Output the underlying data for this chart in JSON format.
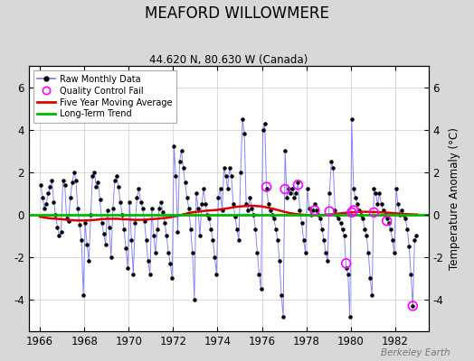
{
  "title": "MEAFORD WILLOWMERE",
  "subtitle": "44.620 N, 80.630 W (Canada)",
  "ylabel": "Temperature Anomaly (°C)",
  "watermark": "Berkeley Earth",
  "xlim": [
    1965.5,
    1983.5
  ],
  "ylim": [
    -5.5,
    7.0
  ],
  "yticks": [
    -4,
    -2,
    0,
    2,
    4,
    6
  ],
  "xticks": [
    1966,
    1968,
    1970,
    1972,
    1974,
    1976,
    1978,
    1980,
    1982
  ],
  "bg_color": "#d8d8d8",
  "plot_bg_color": "#ffffff",
  "raw_line_color": "#7777ff",
  "raw_dot_color": "#000000",
  "moving_avg_color": "#dd0000",
  "trend_color": "#00bb00",
  "qc_fail_color": "#ff00ff",
  "grid_color": "#cccccc",
  "raw_monthly": [
    [
      1966.042,
      1.4
    ],
    [
      1966.125,
      0.8
    ],
    [
      1966.208,
      0.3
    ],
    [
      1966.292,
      0.5
    ],
    [
      1966.375,
      1.0
    ],
    [
      1966.458,
      1.3
    ],
    [
      1966.542,
      1.6
    ],
    [
      1966.625,
      0.6
    ],
    [
      1966.708,
      0.0
    ],
    [
      1966.792,
      -0.6
    ],
    [
      1966.875,
      -1.0
    ],
    [
      1966.958,
      -0.8
    ],
    [
      1967.042,
      1.6
    ],
    [
      1967.125,
      1.4
    ],
    [
      1967.208,
      -0.2
    ],
    [
      1967.292,
      -0.3
    ],
    [
      1967.375,
      0.8
    ],
    [
      1967.458,
      1.5
    ],
    [
      1967.542,
      2.0
    ],
    [
      1967.625,
      1.6
    ],
    [
      1967.708,
      0.3
    ],
    [
      1967.792,
      -0.5
    ],
    [
      1967.875,
      -1.2
    ],
    [
      1967.958,
      -3.8
    ],
    [
      1968.042,
      -0.4
    ],
    [
      1968.125,
      -1.4
    ],
    [
      1968.208,
      -2.2
    ],
    [
      1968.292,
      0.0
    ],
    [
      1968.375,
      1.8
    ],
    [
      1968.458,
      2.0
    ],
    [
      1968.542,
      1.3
    ],
    [
      1968.625,
      1.5
    ],
    [
      1968.708,
      0.7
    ],
    [
      1968.792,
      -0.4
    ],
    [
      1968.875,
      -0.9
    ],
    [
      1968.958,
      -1.4
    ],
    [
      1969.042,
      0.2
    ],
    [
      1969.125,
      -0.6
    ],
    [
      1969.208,
      -2.0
    ],
    [
      1969.292,
      0.3
    ],
    [
      1969.375,
      1.6
    ],
    [
      1969.458,
      1.8
    ],
    [
      1969.542,
      1.3
    ],
    [
      1969.625,
      0.6
    ],
    [
      1969.708,
      0.0
    ],
    [
      1969.792,
      -0.7
    ],
    [
      1969.875,
      -1.6
    ],
    [
      1969.958,
      -2.5
    ],
    [
      1970.042,
      0.6
    ],
    [
      1970.125,
      -1.2
    ],
    [
      1970.208,
      -2.8
    ],
    [
      1970.292,
      -0.4
    ],
    [
      1970.375,
      0.8
    ],
    [
      1970.458,
      1.2
    ],
    [
      1970.542,
      0.6
    ],
    [
      1970.625,
      0.3
    ],
    [
      1970.708,
      -0.3
    ],
    [
      1970.792,
      -1.2
    ],
    [
      1970.875,
      -2.2
    ],
    [
      1970.958,
      -2.8
    ],
    [
      1971.042,
      0.3
    ],
    [
      1971.125,
      -1.0
    ],
    [
      1971.208,
      -1.8
    ],
    [
      1971.292,
      -0.7
    ],
    [
      1971.375,
      0.3
    ],
    [
      1971.458,
      0.6
    ],
    [
      1971.542,
      0.1
    ],
    [
      1971.625,
      -0.4
    ],
    [
      1971.708,
      -1.0
    ],
    [
      1971.792,
      -1.8
    ],
    [
      1971.875,
      -2.3
    ],
    [
      1971.958,
      -3.0
    ],
    [
      1972.042,
      3.2
    ],
    [
      1972.125,
      1.8
    ],
    [
      1972.208,
      -0.8
    ],
    [
      1972.292,
      2.5
    ],
    [
      1972.375,
      3.0
    ],
    [
      1972.458,
      2.2
    ],
    [
      1972.542,
      1.5
    ],
    [
      1972.625,
      0.8
    ],
    [
      1972.708,
      0.3
    ],
    [
      1972.792,
      -0.7
    ],
    [
      1972.875,
      -1.8
    ],
    [
      1972.958,
      -4.0
    ],
    [
      1973.042,
      1.0
    ],
    [
      1973.125,
      0.3
    ],
    [
      1973.208,
      -1.0
    ],
    [
      1973.292,
      0.5
    ],
    [
      1973.375,
      1.2
    ],
    [
      1973.458,
      0.5
    ],
    [
      1973.542,
      0.0
    ],
    [
      1973.625,
      -0.2
    ],
    [
      1973.708,
      -0.7
    ],
    [
      1973.792,
      -1.2
    ],
    [
      1973.875,
      -2.0
    ],
    [
      1973.958,
      -2.8
    ],
    [
      1974.042,
      0.8
    ],
    [
      1974.125,
      1.2
    ],
    [
      1974.208,
      0.2
    ],
    [
      1974.292,
      2.2
    ],
    [
      1974.375,
      1.8
    ],
    [
      1974.458,
      1.2
    ],
    [
      1974.542,
      2.2
    ],
    [
      1974.625,
      1.8
    ],
    [
      1974.708,
      0.5
    ],
    [
      1974.792,
      -0.1
    ],
    [
      1974.875,
      -0.7
    ],
    [
      1974.958,
      -1.2
    ],
    [
      1975.042,
      2.0
    ],
    [
      1975.125,
      4.5
    ],
    [
      1975.208,
      3.8
    ],
    [
      1975.292,
      0.5
    ],
    [
      1975.375,
      0.2
    ],
    [
      1975.458,
      0.8
    ],
    [
      1975.542,
      0.3
    ],
    [
      1975.625,
      0.0
    ],
    [
      1975.708,
      -0.7
    ],
    [
      1975.792,
      -1.8
    ],
    [
      1975.875,
      -2.8
    ],
    [
      1975.958,
      -3.5
    ],
    [
      1976.042,
      4.0
    ],
    [
      1976.125,
      4.3
    ],
    [
      1976.208,
      1.2
    ],
    [
      1976.292,
      0.5
    ],
    [
      1976.375,
      0.2
    ],
    [
      1976.458,
      0.0
    ],
    [
      1976.542,
      -0.2
    ],
    [
      1976.625,
      -0.7
    ],
    [
      1976.708,
      -1.2
    ],
    [
      1976.792,
      -2.2
    ],
    [
      1976.875,
      -3.8
    ],
    [
      1976.958,
      -4.8
    ],
    [
      1977.042,
      3.0
    ],
    [
      1977.125,
      0.8
    ],
    [
      1977.208,
      1.2
    ],
    [
      1977.292,
      1.0
    ],
    [
      1977.375,
      1.2
    ],
    [
      1977.458,
      0.8
    ],
    [
      1977.542,
      1.0
    ],
    [
      1977.625,
      1.5
    ],
    [
      1977.708,
      0.2
    ],
    [
      1977.792,
      -0.4
    ],
    [
      1977.875,
      -1.2
    ],
    [
      1977.958,
      -1.8
    ],
    [
      1978.042,
      1.2
    ],
    [
      1978.125,
      0.3
    ],
    [
      1978.208,
      0.0
    ],
    [
      1978.292,
      0.2
    ],
    [
      1978.375,
      0.5
    ],
    [
      1978.458,
      0.2
    ],
    [
      1978.542,
      0.0
    ],
    [
      1978.625,
      -0.2
    ],
    [
      1978.708,
      -0.7
    ],
    [
      1978.792,
      -1.2
    ],
    [
      1978.875,
      -1.8
    ],
    [
      1978.958,
      -2.2
    ],
    [
      1979.042,
      1.0
    ],
    [
      1979.125,
      2.5
    ],
    [
      1979.208,
      2.2
    ],
    [
      1979.292,
      0.2
    ],
    [
      1979.375,
      0.0
    ],
    [
      1979.458,
      -0.2
    ],
    [
      1979.542,
      -0.4
    ],
    [
      1979.625,
      -0.7
    ],
    [
      1979.708,
      -1.0
    ],
    [
      1979.792,
      -2.5
    ],
    [
      1979.875,
      -2.8
    ],
    [
      1979.958,
      -4.8
    ],
    [
      1980.042,
      4.5
    ],
    [
      1980.125,
      1.2
    ],
    [
      1980.208,
      0.8
    ],
    [
      1980.292,
      0.5
    ],
    [
      1980.375,
      0.2
    ],
    [
      1980.458,
      0.0
    ],
    [
      1980.542,
      -0.2
    ],
    [
      1980.625,
      -0.7
    ],
    [
      1980.708,
      -1.0
    ],
    [
      1980.792,
      -1.8
    ],
    [
      1980.875,
      -3.0
    ],
    [
      1980.958,
      -3.8
    ],
    [
      1981.042,
      1.2
    ],
    [
      1981.125,
      1.0
    ],
    [
      1981.208,
      0.5
    ],
    [
      1981.292,
      1.0
    ],
    [
      1981.375,
      0.5
    ],
    [
      1981.458,
      0.2
    ],
    [
      1981.542,
      0.0
    ],
    [
      1981.625,
      -0.2
    ],
    [
      1981.708,
      -0.4
    ],
    [
      1981.792,
      -0.7
    ],
    [
      1981.875,
      -1.2
    ],
    [
      1981.958,
      -1.8
    ],
    [
      1982.042,
      1.2
    ],
    [
      1982.125,
      0.5
    ],
    [
      1982.208,
      0.0
    ],
    [
      1982.292,
      0.2
    ],
    [
      1982.375,
      0.0
    ],
    [
      1982.458,
      -0.2
    ],
    [
      1982.542,
      -0.7
    ],
    [
      1982.625,
      -1.5
    ],
    [
      1982.708,
      -2.8
    ],
    [
      1982.792,
      -4.3
    ],
    [
      1982.875,
      -1.2
    ],
    [
      1982.958,
      -1.0
    ]
  ],
  "qc_fail_points": [
    [
      1976.208,
      1.3
    ],
    [
      1977.042,
      1.2
    ],
    [
      1977.625,
      1.4
    ],
    [
      1978.375,
      0.2
    ],
    [
      1979.042,
      0.15
    ],
    [
      1979.792,
      -2.3
    ],
    [
      1980.042,
      0.1
    ],
    [
      1980.125,
      0.2
    ],
    [
      1981.042,
      0.1
    ],
    [
      1981.625,
      -0.3
    ],
    [
      1982.792,
      -4.3
    ]
  ],
  "moving_avg": [
    [
      1966.0,
      -0.1
    ],
    [
      1966.25,
      -0.15
    ],
    [
      1966.5,
      -0.18
    ],
    [
      1966.75,
      -0.2
    ],
    [
      1967.0,
      -0.22
    ],
    [
      1967.25,
      -0.25
    ],
    [
      1967.5,
      -0.27
    ],
    [
      1967.75,
      -0.28
    ],
    [
      1968.0,
      -0.28
    ],
    [
      1968.25,
      -0.27
    ],
    [
      1968.5,
      -0.25
    ],
    [
      1968.75,
      -0.22
    ],
    [
      1969.0,
      -0.2
    ],
    [
      1969.25,
      -0.2
    ],
    [
      1969.5,
      -0.2
    ],
    [
      1969.75,
      -0.22
    ],
    [
      1970.0,
      -0.23
    ],
    [
      1970.25,
      -0.25
    ],
    [
      1970.5,
      -0.25
    ],
    [
      1970.75,
      -0.24
    ],
    [
      1971.0,
      -0.22
    ],
    [
      1971.25,
      -0.2
    ],
    [
      1971.5,
      -0.18
    ],
    [
      1971.75,
      -0.15
    ],
    [
      1972.0,
      -0.1
    ],
    [
      1972.25,
      -0.05
    ],
    [
      1972.5,
      0.02
    ],
    [
      1972.75,
      0.08
    ],
    [
      1973.0,
      0.12
    ],
    [
      1973.25,
      0.15
    ],
    [
      1973.5,
      0.18
    ],
    [
      1973.75,
      0.2
    ],
    [
      1974.0,
      0.22
    ],
    [
      1974.25,
      0.26
    ],
    [
      1974.5,
      0.3
    ],
    [
      1974.75,
      0.35
    ],
    [
      1975.0,
      0.38
    ],
    [
      1975.25,
      0.4
    ],
    [
      1975.5,
      0.42
    ],
    [
      1975.75,
      0.4
    ],
    [
      1976.0,
      0.38
    ],
    [
      1976.25,
      0.33
    ],
    [
      1976.5,
      0.27
    ],
    [
      1976.75,
      0.2
    ],
    [
      1977.0,
      0.13
    ],
    [
      1977.25,
      0.07
    ],
    [
      1977.5,
      0.03
    ],
    [
      1977.75,
      0.0
    ],
    [
      1978.0,
      -0.02
    ],
    [
      1978.25,
      -0.03
    ],
    [
      1978.5,
      -0.03
    ],
    [
      1978.75,
      -0.02
    ],
    [
      1979.0,
      0.0
    ],
    [
      1979.25,
      0.02
    ],
    [
      1979.5,
      0.05
    ],
    [
      1979.75,
      0.08
    ],
    [
      1980.0,
      0.1
    ],
    [
      1980.25,
      0.12
    ],
    [
      1980.5,
      0.13
    ],
    [
      1980.75,
      0.13
    ],
    [
      1981.0,
      0.12
    ],
    [
      1981.25,
      0.11
    ],
    [
      1981.5,
      0.1
    ],
    [
      1981.75,
      0.08
    ],
    [
      1982.0,
      0.06
    ],
    [
      1982.25,
      0.04
    ],
    [
      1982.5,
      0.02
    ],
    [
      1982.75,
      0.01
    ],
    [
      1983.0,
      0.0
    ]
  ],
  "trend_x": [
    1965.5,
    1983.5
  ],
  "trend_y": [
    0.0,
    0.0
  ]
}
